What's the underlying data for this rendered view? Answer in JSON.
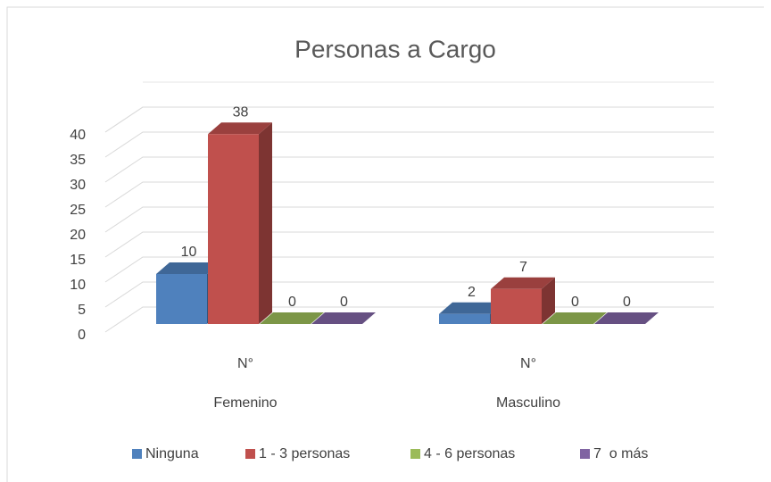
{
  "chart_data": {
    "type": "bar3d",
    "title": "Personas a Cargo",
    "categories": [
      "N°",
      "N°"
    ],
    "groups": [
      "Femenino",
      "Masculino"
    ],
    "series": [
      {
        "name": "Ninguna",
        "color": "#4f81bd",
        "values": [
          10,
          2
        ]
      },
      {
        "name": "1 - 3 personas",
        "color": "#c0504d",
        "values": [
          38,
          7
        ]
      },
      {
        "name": "4 - 6 personas",
        "color": "#9bbb59",
        "values": [
          0,
          0
        ]
      },
      {
        "name": "7  o más",
        "color": "#8064a2",
        "values": [
          0,
          0
        ]
      }
    ],
    "ylim": [
      0,
      40
    ],
    "yticks": [
      0,
      5,
      10,
      15,
      20,
      25,
      30,
      35,
      40
    ],
    "grid": true,
    "legend": "bottom"
  }
}
